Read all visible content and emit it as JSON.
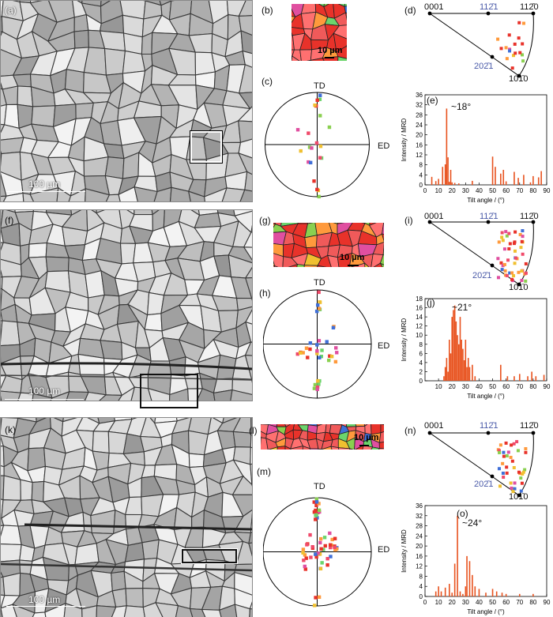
{
  "rows": [
    {
      "id": "row1",
      "labels": {
        "micro": "(a)",
        "ebsd": "(b)",
        "pf": "(c)",
        "ipf": "(d)",
        "hist": "(e)"
      },
      "micro_scale": "100 µm",
      "ebsd_scale": "10 µm",
      "peak_label": "~18°"
    },
    {
      "id": "row2",
      "labels": {
        "micro": "(f)",
        "ebsd": "(g)",
        "pf": "(h)",
        "ipf": "(i)",
        "hist": "(j)"
      },
      "micro_scale": "100 µm",
      "ebsd_scale": "10 µm",
      "peak_label": "~21°"
    },
    {
      "id": "row3",
      "labels": {
        "micro": "(k)",
        "ebsd": "(l)",
        "pf": "(m)",
        "ipf": "(n)",
        "hist": "(o)"
      },
      "micro_scale": "100 µm",
      "ebsd_scale": "10 µm",
      "peak_label": "~24°"
    }
  ],
  "pole_figure": {
    "td": "TD",
    "ed": "ED"
  },
  "ipf": {
    "c0001": "0001",
    "c1120": "112̄0",
    "c1121": "112̄1",
    "c2021": "202̄1",
    "c1010": "101̄0"
  },
  "colors": {
    "bar": "#e8521e",
    "grain_border": "#333333",
    "ebsd_palette": [
      "#e8322a",
      "#f05a5a",
      "#ff7070",
      "#ff9a3c",
      "#6cd46c",
      "#8ad050",
      "#e04fa0",
      "#f0c030",
      "#3f6fd8",
      "#5fc0a0"
    ]
  },
  "chart_data": [
    {
      "type": "bar",
      "xlabel": "Tilt angle / (°)",
      "ylabel": "Intensity / MRD",
      "xlim": [
        0,
        90
      ],
      "ylim": [
        0,
        36
      ],
      "yticks": [
        0,
        4,
        8,
        12,
        16,
        20,
        24,
        28,
        32,
        36
      ],
      "xticks": [
        0,
        10,
        20,
        30,
        40,
        50,
        60,
        70,
        80,
        90
      ],
      "x": [
        5,
        8,
        10,
        13,
        15,
        16,
        17,
        18,
        19,
        20,
        22,
        25,
        35,
        50,
        52,
        56,
        58,
        60,
        66,
        69,
        73,
        78,
        80,
        84,
        86
      ],
      "values": [
        3.2,
        1.5,
        2.4,
        7.2,
        8.2,
        30.5,
        11,
        1.2,
        6,
        1,
        0.8,
        0.6,
        1.6,
        11.3,
        7.2,
        4.5,
        6,
        1.4,
        5.2,
        2.8,
        4,
        1,
        3.5,
        3,
        5.5
      ]
    },
    {
      "type": "bar",
      "xlabel": "Tilt angle / (°)",
      "ylabel": "Intensity / MRD",
      "xlim": [
        0,
        90
      ],
      "ylim": [
        0,
        18
      ],
      "yticks": [
        0,
        2,
        4,
        6,
        8,
        10,
        12,
        14,
        16,
        18
      ],
      "xticks": [
        10,
        20,
        30,
        40,
        50,
        60,
        70,
        80,
        90
      ],
      "x": [
        14,
        15,
        16,
        17,
        18,
        19,
        20,
        21,
        22,
        23,
        24,
        25,
        26,
        27,
        28,
        29,
        30,
        31,
        32,
        33,
        35,
        37,
        56,
        61,
        66,
        70,
        76,
        79,
        82,
        88
      ],
      "values": [
        1,
        3,
        5,
        2,
        9,
        6,
        14,
        15.5,
        16.5,
        13,
        10,
        8,
        14,
        9,
        7,
        4.5,
        9,
        3,
        5,
        3,
        3.5,
        1,
        3.5,
        1,
        1,
        1.5,
        1,
        2,
        1,
        1.3
      ]
    },
    {
      "type": "bar",
      "xlabel": "Tilt angle / (°)",
      "ylabel": "Intensity / MRD",
      "xlim": [
        0,
        90
      ],
      "ylim": [
        0,
        36
      ],
      "yticks": [
        0,
        4,
        8,
        12,
        16,
        20,
        24,
        28,
        32,
        36
      ],
      "xticks": [
        0,
        10,
        20,
        30,
        40,
        50,
        60,
        70,
        80,
        90
      ],
      "x": [
        8,
        10,
        12,
        15,
        18,
        20,
        22,
        24,
        26,
        28,
        30,
        31,
        33,
        35,
        37,
        40,
        45,
        50,
        53,
        57,
        60,
        70,
        80
      ],
      "values": [
        2,
        4,
        2,
        3.5,
        5,
        1.5,
        13,
        32,
        2,
        1,
        4,
        16,
        14,
        8.5,
        4,
        3,
        1.5,
        3,
        2,
        1.5,
        1,
        1,
        1
      ]
    }
  ]
}
